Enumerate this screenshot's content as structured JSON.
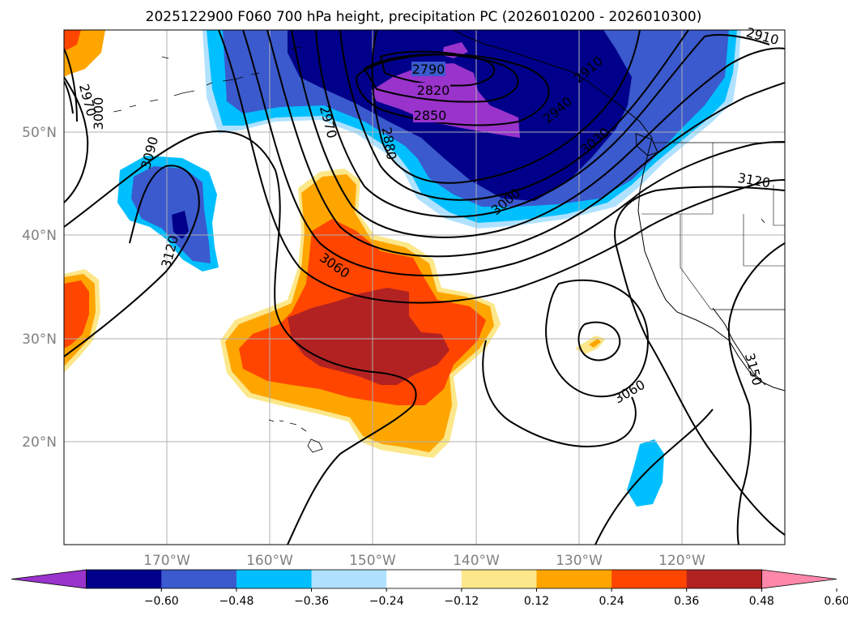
{
  "title": "2025122900 F060 700 hPa height, precipitation PC (2026010200 - 2026010300)",
  "map": {
    "lon_range": [
      -180,
      -110
    ],
    "lat_range": [
      10,
      60
    ],
    "gridlines": true,
    "lat_labels": [
      "50°N",
      "40°N",
      "30°N",
      "20°N"
    ],
    "lon_labels": [
      "170°W",
      "160°W",
      "150°W",
      "140°W",
      "130°W",
      "120°W"
    ]
  },
  "contour_labels": [
    "2790",
    "2820",
    "2850",
    "2880",
    "2910",
    "2910",
    "2940",
    "2970",
    "2970",
    "3000",
    "3000",
    "3030",
    "3060",
    "3060",
    "3090",
    "3120",
    "3120",
    "3150"
  ],
  "colorbar": {
    "ticks": [
      "−0.60",
      "−0.48",
      "−0.36",
      "−0.24",
      "−0.12",
      "0.12",
      "0.24",
      "0.36",
      "0.48",
      "0.60"
    ],
    "colors": [
      "#9933cc",
      "#00008b",
      "#3a5acd",
      "#00bfff",
      "#b0e2ff",
      "#ffffff",
      "#fce78a",
      "#ffa500",
      "#ff4500",
      "#b22222",
      "#ff88aa"
    ]
  }
}
